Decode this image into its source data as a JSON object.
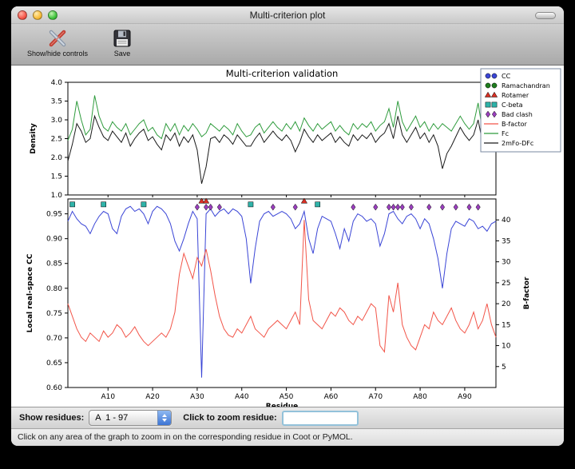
{
  "window": {
    "title": "Multi-criterion plot"
  },
  "toolbar": {
    "buttons": [
      {
        "label": "Show/hide controls",
        "icon": "tools-icon"
      },
      {
        "label": "Save",
        "icon": "save-icon"
      }
    ]
  },
  "chart_data": [
    {
      "type": "line",
      "title": "Multi-criterion validation",
      "ylabel": "Density",
      "ylim": [
        1.0,
        4.0
      ],
      "yticks": [
        1.0,
        1.5,
        2.0,
        2.5,
        3.0,
        3.5,
        4.0
      ],
      "x_range": [
        1,
        97
      ],
      "grid": false,
      "series": [
        {
          "name": "Fc",
          "color": "#2e9b3c",
          "values": [
            2.45,
            2.75,
            3.5,
            3.0,
            2.6,
            2.75,
            3.65,
            3.1,
            2.8,
            2.7,
            2.95,
            2.8,
            2.7,
            2.9,
            2.6,
            2.75,
            2.9,
            3.0,
            2.7,
            2.8,
            2.6,
            2.5,
            2.9,
            2.7,
            2.9,
            2.6,
            2.85,
            2.7,
            2.9,
            2.75,
            2.55,
            2.65,
            2.9,
            2.8,
            2.7,
            2.85,
            2.75,
            2.6,
            2.9,
            2.7,
            2.55,
            2.6,
            2.8,
            2.9,
            2.65,
            2.8,
            2.95,
            2.8,
            2.7,
            2.9,
            2.75,
            2.95,
            2.7,
            3.05,
            2.85,
            2.7,
            2.9,
            2.75,
            2.85,
            2.95,
            2.7,
            2.85,
            2.7,
            2.6,
            2.9,
            2.75,
            2.9,
            2.8,
            2.95,
            2.7,
            2.85,
            2.95,
            3.3,
            2.8,
            3.5,
            2.95,
            2.7,
            2.9,
            3.1,
            2.8,
            2.95,
            2.7,
            2.9,
            2.75,
            2.9,
            2.8,
            2.7,
            2.9,
            3.1,
            2.9,
            2.75,
            2.9,
            3.45,
            2.7,
            2.9,
            3.0,
            3.1
          ]
        },
        {
          "name": "2mFo-DFc",
          "color": "#1a1a1a",
          "values": [
            1.9,
            2.35,
            2.9,
            2.7,
            2.4,
            2.5,
            3.1,
            2.8,
            2.55,
            2.45,
            2.7,
            2.55,
            2.4,
            2.65,
            2.3,
            2.5,
            2.65,
            2.75,
            2.45,
            2.55,
            2.35,
            2.2,
            2.6,
            2.45,
            2.65,
            2.3,
            2.55,
            2.4,
            2.6,
            2.2,
            1.3,
            1.75,
            2.5,
            2.55,
            2.4,
            2.6,
            2.5,
            2.35,
            2.6,
            2.45,
            2.3,
            2.3,
            2.5,
            2.65,
            2.4,
            2.55,
            2.7,
            2.55,
            2.45,
            2.6,
            2.45,
            2.15,
            2.4,
            2.75,
            2.55,
            2.4,
            2.6,
            2.45,
            2.55,
            2.65,
            2.4,
            2.55,
            2.4,
            2.3,
            2.6,
            2.45,
            2.6,
            2.5,
            2.65,
            2.4,
            2.55,
            2.65,
            2.9,
            2.5,
            3.1,
            2.6,
            2.4,
            2.6,
            2.8,
            2.5,
            2.65,
            2.4,
            2.6,
            2.3,
            1.7,
            2.1,
            2.3,
            2.55,
            2.8,
            2.6,
            2.45,
            2.6,
            3.0,
            2.4,
            2.6,
            2.75,
            2.9
          ]
        }
      ],
      "legend": {
        "position": "top-right",
        "entries": [
          {
            "label": "CC",
            "marker": "circle",
            "color": "#3a45d6"
          },
          {
            "label": "Ramachandran",
            "marker": "circle",
            "color": "#1e7d1e"
          },
          {
            "label": "Rotamer",
            "marker": "triangle",
            "color": "#d93025"
          },
          {
            "label": "C-beta",
            "marker": "square",
            "color": "#2fb3a9"
          },
          {
            "label": "Bad clash",
            "marker": "diamond",
            "color": "#9b3fbf"
          },
          {
            "label": "B-factor",
            "marker": "line",
            "color": "#f25549"
          },
          {
            "label": "Fc",
            "marker": "line",
            "color": "#2e9b3c"
          },
          {
            "label": "2mFo-DFc",
            "marker": "line",
            "color": "#1a1a1a"
          }
        ]
      }
    },
    {
      "type": "line",
      "xlabel": "Residue",
      "ylabel_left": "Local real-space CC",
      "ylabel_right": "B-factor",
      "ylim_left": [
        0.6,
        0.98
      ],
      "ylim_right": [
        0,
        45
      ],
      "yticks_left": [
        0.6,
        0.65,
        0.7,
        0.75,
        0.8,
        0.85,
        0.9,
        0.95
      ],
      "yticks_right": [
        5,
        10,
        15,
        20,
        25,
        30,
        35,
        40
      ],
      "xticks": [
        10,
        20,
        30,
        40,
        50,
        60,
        70,
        80,
        90
      ],
      "xtick_labels": [
        "A10",
        "A20",
        "A30",
        "A40",
        "A50",
        "A60",
        "A70",
        "A80",
        "A90"
      ],
      "x_range": [
        1,
        97
      ],
      "grid": false,
      "series": [
        {
          "name": "CC",
          "axis": "left",
          "color": "#3a45d6",
          "values": [
            0.935,
            0.955,
            0.94,
            0.93,
            0.925,
            0.91,
            0.93,
            0.945,
            0.955,
            0.95,
            0.92,
            0.91,
            0.945,
            0.96,
            0.965,
            0.955,
            0.96,
            0.95,
            0.93,
            0.955,
            0.965,
            0.96,
            0.95,
            0.93,
            0.895,
            0.875,
            0.9,
            0.93,
            0.955,
            0.94,
            0.62,
            0.95,
            0.96,
            0.945,
            0.955,
            0.96,
            0.95,
            0.96,
            0.955,
            0.945,
            0.9,
            0.81,
            0.88,
            0.935,
            0.95,
            0.955,
            0.945,
            0.95,
            0.955,
            0.95,
            0.94,
            0.92,
            0.93,
            0.955,
            0.9,
            0.87,
            0.92,
            0.945,
            0.94,
            0.935,
            0.91,
            0.88,
            0.92,
            0.895,
            0.935,
            0.95,
            0.945,
            0.935,
            0.94,
            0.93,
            0.885,
            0.91,
            0.95,
            0.955,
            0.94,
            0.93,
            0.945,
            0.95,
            0.94,
            0.92,
            0.94,
            0.93,
            0.9,
            0.86,
            0.8,
            0.87,
            0.92,
            0.935,
            0.93,
            0.925,
            0.94,
            0.935,
            0.92,
            0.925,
            0.915,
            0.93,
            0.935
          ]
        },
        {
          "name": "B-factor",
          "axis": "right",
          "color": "#f25549",
          "values": [
            20,
            17,
            14,
            12,
            11,
            13,
            12,
            11,
            13.5,
            12,
            13,
            15,
            14,
            12,
            13,
            14.5,
            12.5,
            11,
            10,
            11,
            12,
            13,
            12,
            14,
            18,
            27,
            32,
            29,
            26,
            31,
            29,
            33,
            28,
            22,
            17,
            14,
            12.5,
            12,
            14,
            13,
            15,
            17,
            14,
            13,
            12,
            14,
            15,
            16,
            15,
            14,
            16,
            18,
            15,
            40,
            21,
            16,
            15,
            14,
            16,
            18,
            17,
            19,
            18,
            16,
            15,
            17,
            16,
            18,
            20,
            19,
            10,
            8.5,
            22,
            18,
            25,
            15,
            12,
            10,
            9,
            12,
            15,
            14,
            18,
            16,
            15,
            17,
            19,
            16,
            14,
            13,
            15,
            18,
            14,
            16,
            20,
            15,
            12
          ]
        }
      ],
      "marker_series": [
        {
          "name": "Rotamer",
          "marker": "triangle",
          "color": "#d93025",
          "y": 0.9755,
          "x": [
            31,
            32,
            54
          ]
        },
        {
          "name": "C-beta",
          "marker": "square",
          "color": "#2fb3a9",
          "y": 0.969,
          "x": [
            2,
            9,
            18,
            42,
            57
          ]
        },
        {
          "name": "Bad clash",
          "marker": "diamond",
          "color": "#9b3fbf",
          "y": 0.9635,
          "x": [
            30,
            32,
            33,
            35,
            47,
            52,
            65,
            70,
            73,
            74,
            75,
            76,
            78,
            82,
            85,
            88,
            91,
            93
          ]
        }
      ]
    }
  ],
  "controls": {
    "show_residues_label": "Show residues:",
    "chain_select_value": "A  1 - 97",
    "zoom_label": "Click to zoom residue:",
    "zoom_input_value": ""
  },
  "status_bar": "Click on any area of the graph to zoom in on the corresponding residue in Coot or PyMOL."
}
